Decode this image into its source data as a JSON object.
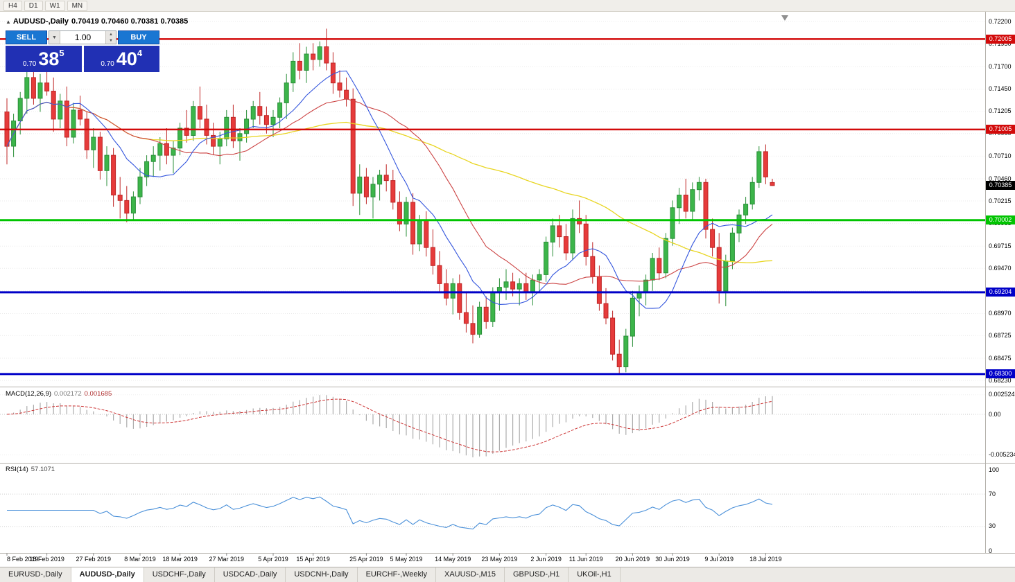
{
  "toolbar": {
    "timeframes": [
      "H4",
      "D1",
      "W1",
      "MN"
    ]
  },
  "chart_header": {
    "symbol": "AUDUSD-,Daily",
    "ohlc": "0.70419 0.70460 0.70381 0.70385"
  },
  "icons": {
    "collapse_arrow": "▲",
    "volume_dropdown_arrow": "▼",
    "spinner_up": "▲",
    "spinner_down": "▼",
    "chart_shift_marker": "▼"
  },
  "trade_panel": {
    "sell_label": "SELL",
    "buy_label": "BUY",
    "volume": "1.00",
    "sell_price": {
      "small": "0.70",
      "big": "38",
      "sup": "5"
    },
    "buy_price": {
      "small": "0.70",
      "big": "40",
      "sup": "4"
    }
  },
  "price_axis": {
    "labels": [
      "0.72200",
      "0.71950",
      "0.71700",
      "0.71450",
      "0.71205",
      "0.70960",
      "0.70710",
      "0.70460",
      "0.70215",
      "0.69965",
      "0.69715",
      "0.69470",
      "0.69220",
      "0.68970",
      "0.68725",
      "0.68475",
      "0.68230"
    ]
  },
  "levels": [
    {
      "value": 0.72005,
      "label": "0.72005",
      "color": "#d20a0a",
      "width": 2.5
    },
    {
      "value": 0.71005,
      "label": "0.71005",
      "color": "#d20a0a",
      "width": 2.5
    },
    {
      "value": 0.70002,
      "label": "0.70002",
      "color": "#00c400",
      "width": 3
    },
    {
      "value": 0.69204,
      "label": "0.69204",
      "color": "#0000c8",
      "width": 3
    },
    {
      "value": 0.683,
      "label": "0.68300",
      "color": "#0000c8",
      "width": 3
    }
  ],
  "current_price": {
    "value": 0.70385,
    "label": "0.70385"
  },
  "macd_panel": {
    "name": "MACD(12,26,9)",
    "value": "0.002172",
    "signal": "0.001685",
    "axis": [
      "0.002524",
      "0.00",
      "-0.005234"
    ]
  },
  "rsi_panel": {
    "name": "RSI(14)",
    "value": "57.1071",
    "axis": [
      "100",
      "70",
      "30",
      "0"
    ]
  },
  "time_axis": {
    "labels": [
      {
        "text": "8 Feb 2019",
        "index": 0
      },
      {
        "text": "18 Feb 2019",
        "index": 6
      },
      {
        "text": "27 Feb 2019",
        "index": 13
      },
      {
        "text": "8 Mar 2019",
        "index": 20
      },
      {
        "text": "18 Mar 2019",
        "index": 26
      },
      {
        "text": "27 Mar 2019",
        "index": 33
      },
      {
        "text": "5 Apr 2019",
        "index": 40
      },
      {
        "text": "15 Apr 2019",
        "index": 46
      },
      {
        "text": "25 Apr 2019",
        "index": 54
      },
      {
        "text": "5 May 2019",
        "index": 60
      },
      {
        "text": "14 May 2019",
        "index": 67
      },
      {
        "text": "23 May 2019",
        "index": 74
      },
      {
        "text": "2 Jun 2019",
        "index": 81
      },
      {
        "text": "11 Jun 2019",
        "index": 87
      },
      {
        "text": "20 Jun 2019",
        "index": 94
      },
      {
        "text": "30 Jun 2019",
        "index": 100
      },
      {
        "text": "9 Jul 2019",
        "index": 107
      },
      {
        "text": "18 Jul 2019",
        "index": 114
      }
    ]
  },
  "tabs": [
    {
      "label": "EURUSD-,Daily",
      "active": false
    },
    {
      "label": "AUDUSD-,Daily",
      "active": true
    },
    {
      "label": "USDCHF-,Daily",
      "active": false
    },
    {
      "label": "USDCAD-,Daily",
      "active": false
    },
    {
      "label": "USDCNH-,Daily",
      "active": false
    },
    {
      "label": "EURCHF-,Weekly",
      "active": false
    },
    {
      "label": "XAUUSD-,M15",
      "active": false
    },
    {
      "label": "GBPUSD-,H1",
      "active": false
    },
    {
      "label": "UKOil-,H1",
      "active": false
    }
  ],
  "colors": {
    "bull": "#3cb54a",
    "bull_border": "#2a8f38",
    "bear": "#e63b3b",
    "bear_border": "#bf2626",
    "ma_fast": "#3355dd",
    "ma_mid": "#cc4444",
    "ma_slow": "#e8d520",
    "macd_bar": "#ababab",
    "macd_signal": "#cc3333",
    "rsi_line": "#4a90d9",
    "current_box": "#000000",
    "button_blue": "#1976d2",
    "price_box_blue": "#2130b4"
  },
  "chart_data": {
    "type": "candlestick",
    "symbol": "AUDUSD",
    "timeframe": "Daily",
    "title": "AUDUSD-,Daily",
    "last_ohlc": {
      "open": 0.70419,
      "high": 0.7046,
      "low": 0.70381,
      "close": 0.70385
    },
    "visible_price_range": [
      0.6823,
      0.722
    ],
    "horizontal_levels": [
      0.72005,
      0.71005,
      0.70002,
      0.69204,
      0.683
    ],
    "indicators": {
      "moving_averages": [
        {
          "type": "SMA",
          "period": 10,
          "color_role": "fast-blue"
        },
        {
          "type": "SMA",
          "period": 21,
          "color_role": "mid-red"
        },
        {
          "type": "SMA",
          "period": 55,
          "color_role": "slow-yellow"
        }
      ],
      "macd": {
        "fast": 12,
        "slow": 26,
        "signal": 9,
        "value": 0.002172,
        "signal_value": 0.001685,
        "axis_max": 0.002524,
        "axis_min": -0.005234
      },
      "rsi": {
        "period": 14,
        "value": 57.1071,
        "levels": [
          70,
          30
        ]
      }
    },
    "candles": [
      [
        0.712,
        0.7135,
        0.7062,
        0.7082
      ],
      [
        0.7082,
        0.7118,
        0.707,
        0.711
      ],
      [
        0.711,
        0.7142,
        0.7095,
        0.7135
      ],
      [
        0.7135,
        0.7168,
        0.7118,
        0.7158
      ],
      [
        0.7158,
        0.7175,
        0.7128,
        0.7135
      ],
      [
        0.7135,
        0.7162,
        0.712,
        0.7152
      ],
      [
        0.7152,
        0.717,
        0.7138,
        0.7143
      ],
      [
        0.7143,
        0.7158,
        0.7098,
        0.7112
      ],
      [
        0.7112,
        0.714,
        0.7102,
        0.7132
      ],
      [
        0.7132,
        0.7148,
        0.7082,
        0.7092
      ],
      [
        0.7092,
        0.713,
        0.7085,
        0.7122
      ],
      [
        0.7122,
        0.7138,
        0.7105,
        0.7112
      ],
      [
        0.7112,
        0.712,
        0.7068,
        0.7078
      ],
      [
        0.7078,
        0.7102,
        0.7058,
        0.7092
      ],
      [
        0.7092,
        0.7098,
        0.7045,
        0.7055
      ],
      [
        0.7055,
        0.7082,
        0.7038,
        0.7072
      ],
      [
        0.7072,
        0.708,
        0.7015,
        0.7028
      ],
      [
        0.7028,
        0.7048,
        0.7002,
        0.7022
      ],
      [
        0.7022,
        0.7038,
        0.6998,
        0.7008
      ],
      [
        0.7008,
        0.7032,
        0.7,
        0.7026
      ],
      [
        0.7026,
        0.7058,
        0.7018,
        0.7048
      ],
      [
        0.7048,
        0.7072,
        0.7038,
        0.7065
      ],
      [
        0.7065,
        0.7082,
        0.7048,
        0.7072
      ],
      [
        0.7072,
        0.7092,
        0.7055,
        0.7085
      ],
      [
        0.7085,
        0.7102,
        0.7062,
        0.7072
      ],
      [
        0.7072,
        0.7088,
        0.7052,
        0.708
      ],
      [
        0.708,
        0.7108,
        0.7072,
        0.7102
      ],
      [
        0.7102,
        0.7122,
        0.7086,
        0.7094
      ],
      [
        0.7094,
        0.7132,
        0.7088,
        0.7126
      ],
      [
        0.7126,
        0.7148,
        0.7102,
        0.7112
      ],
      [
        0.7112,
        0.7128,
        0.7084,
        0.7094
      ],
      [
        0.7094,
        0.7108,
        0.7072,
        0.7082
      ],
      [
        0.7082,
        0.7098,
        0.7062,
        0.709
      ],
      [
        0.709,
        0.7122,
        0.7082,
        0.7114
      ],
      [
        0.7114,
        0.7128,
        0.708,
        0.7088
      ],
      [
        0.7088,
        0.7102,
        0.7066,
        0.7096
      ],
      [
        0.7096,
        0.7122,
        0.7086,
        0.7112
      ],
      [
        0.7112,
        0.7132,
        0.7102,
        0.7126
      ],
      [
        0.7126,
        0.7142,
        0.7106,
        0.7116
      ],
      [
        0.7116,
        0.7126,
        0.7096,
        0.7106
      ],
      [
        0.7106,
        0.7122,
        0.7092,
        0.7114
      ],
      [
        0.7114,
        0.7136,
        0.7102,
        0.713
      ],
      [
        0.713,
        0.7162,
        0.7112,
        0.7152
      ],
      [
        0.7152,
        0.7186,
        0.7142,
        0.7176
      ],
      [
        0.7176,
        0.7196,
        0.7156,
        0.7166
      ],
      [
        0.7166,
        0.7192,
        0.7152,
        0.7184
      ],
      [
        0.7184,
        0.7196,
        0.7166,
        0.7178
      ],
      [
        0.7178,
        0.7198,
        0.717,
        0.7192
      ],
      [
        0.7192,
        0.7212,
        0.7166,
        0.7174
      ],
      [
        0.7174,
        0.7186,
        0.714,
        0.7152
      ],
      [
        0.7152,
        0.7166,
        0.7136,
        0.7144
      ],
      [
        0.7144,
        0.7158,
        0.7126,
        0.7134
      ],
      [
        0.7134,
        0.7146,
        0.7016,
        0.703
      ],
      [
        0.703,
        0.7062,
        0.7006,
        0.7048
      ],
      [
        0.7048,
        0.7058,
        0.7018,
        0.7026
      ],
      [
        0.7026,
        0.7048,
        0.7002,
        0.704
      ],
      [
        0.704,
        0.7056,
        0.7022,
        0.705
      ],
      [
        0.705,
        0.7062,
        0.7032,
        0.7044
      ],
      [
        0.7044,
        0.7056,
        0.7012,
        0.702
      ],
      [
        0.702,
        0.7032,
        0.6988,
        0.6996
      ],
      [
        0.6996,
        0.7026,
        0.6982,
        0.702
      ],
      [
        0.702,
        0.703,
        0.6962,
        0.6974
      ],
      [
        0.6974,
        0.7006,
        0.6966,
        0.7
      ],
      [
        0.7,
        0.701,
        0.696,
        0.697
      ],
      [
        0.697,
        0.699,
        0.694,
        0.695
      ],
      [
        0.695,
        0.6966,
        0.692,
        0.693
      ],
      [
        0.693,
        0.6946,
        0.6906,
        0.6914
      ],
      [
        0.6914,
        0.6936,
        0.6896,
        0.693
      ],
      [
        0.693,
        0.694,
        0.689,
        0.6898
      ],
      [
        0.6898,
        0.692,
        0.6876,
        0.6886
      ],
      [
        0.6886,
        0.6906,
        0.6864,
        0.6874
      ],
      [
        0.6874,
        0.691,
        0.687,
        0.6904
      ],
      [
        0.6904,
        0.6916,
        0.688,
        0.6888
      ],
      [
        0.6888,
        0.6926,
        0.6882,
        0.692
      ],
      [
        0.692,
        0.6936,
        0.69,
        0.6926
      ],
      [
        0.6926,
        0.6946,
        0.6912,
        0.6932
      ],
      [
        0.6932,
        0.6942,
        0.6916,
        0.6924
      ],
      [
        0.6924,
        0.6936,
        0.6906,
        0.693
      ],
      [
        0.693,
        0.6942,
        0.6912,
        0.692
      ],
      [
        0.692,
        0.694,
        0.6906,
        0.6934
      ],
      [
        0.6934,
        0.6946,
        0.692,
        0.694
      ],
      [
        0.694,
        0.6982,
        0.6932,
        0.6976
      ],
      [
        0.6976,
        0.7002,
        0.696,
        0.6994
      ],
      [
        0.6994,
        0.7006,
        0.697,
        0.6982
      ],
      [
        0.6982,
        0.6996,
        0.6956,
        0.6964
      ],
      [
        0.6964,
        0.7012,
        0.6956,
        0.7002
      ],
      [
        0.7002,
        0.7022,
        0.6986,
        0.6996
      ],
      [
        0.6996,
        0.7006,
        0.695,
        0.696
      ],
      [
        0.696,
        0.6976,
        0.693,
        0.6938
      ],
      [
        0.6938,
        0.695,
        0.69,
        0.6908
      ],
      [
        0.6908,
        0.6925,
        0.6885,
        0.6892
      ],
      [
        0.6892,
        0.69,
        0.6845,
        0.6852
      ],
      [
        0.6852,
        0.6868,
        0.683,
        0.6838
      ],
      [
        0.6838,
        0.688,
        0.6832,
        0.6872
      ],
      [
        0.6872,
        0.6922,
        0.686,
        0.6914
      ],
      [
        0.6914,
        0.6928,
        0.6894,
        0.692
      ],
      [
        0.692,
        0.694,
        0.6906,
        0.6934
      ],
      [
        0.6934,
        0.6964,
        0.6922,
        0.6958
      ],
      [
        0.6958,
        0.697,
        0.6934,
        0.6942
      ],
      [
        0.6942,
        0.6986,
        0.6936,
        0.698
      ],
      [
        0.698,
        0.7022,
        0.6972,
        0.7014
      ],
      [
        0.7014,
        0.7036,
        0.6996,
        0.7028
      ],
      [
        0.7028,
        0.7046,
        0.7002,
        0.701
      ],
      [
        0.701,
        0.7042,
        0.7,
        0.7034
      ],
      [
        0.7034,
        0.7048,
        0.7022,
        0.7042
      ],
      [
        0.7042,
        0.7046,
        0.698,
        0.699
      ],
      [
        0.699,
        0.7002,
        0.696,
        0.697
      ],
      [
        0.697,
        0.6986,
        0.6908,
        0.6922
      ],
      [
        0.6922,
        0.6962,
        0.6905,
        0.6955
      ],
      [
        0.6955,
        0.6992,
        0.6946,
        0.6986
      ],
      [
        0.6986,
        0.7012,
        0.6976,
        0.7006
      ],
      [
        0.7006,
        0.7026,
        0.6996,
        0.7018
      ],
      [
        0.7018,
        0.7048,
        0.7012,
        0.7042
      ],
      [
        0.7042,
        0.7082,
        0.7036,
        0.7076
      ],
      [
        0.7076,
        0.7084,
        0.704,
        0.7048
      ],
      [
        0.70419,
        0.7046,
        0.70381,
        0.70385
      ]
    ]
  }
}
